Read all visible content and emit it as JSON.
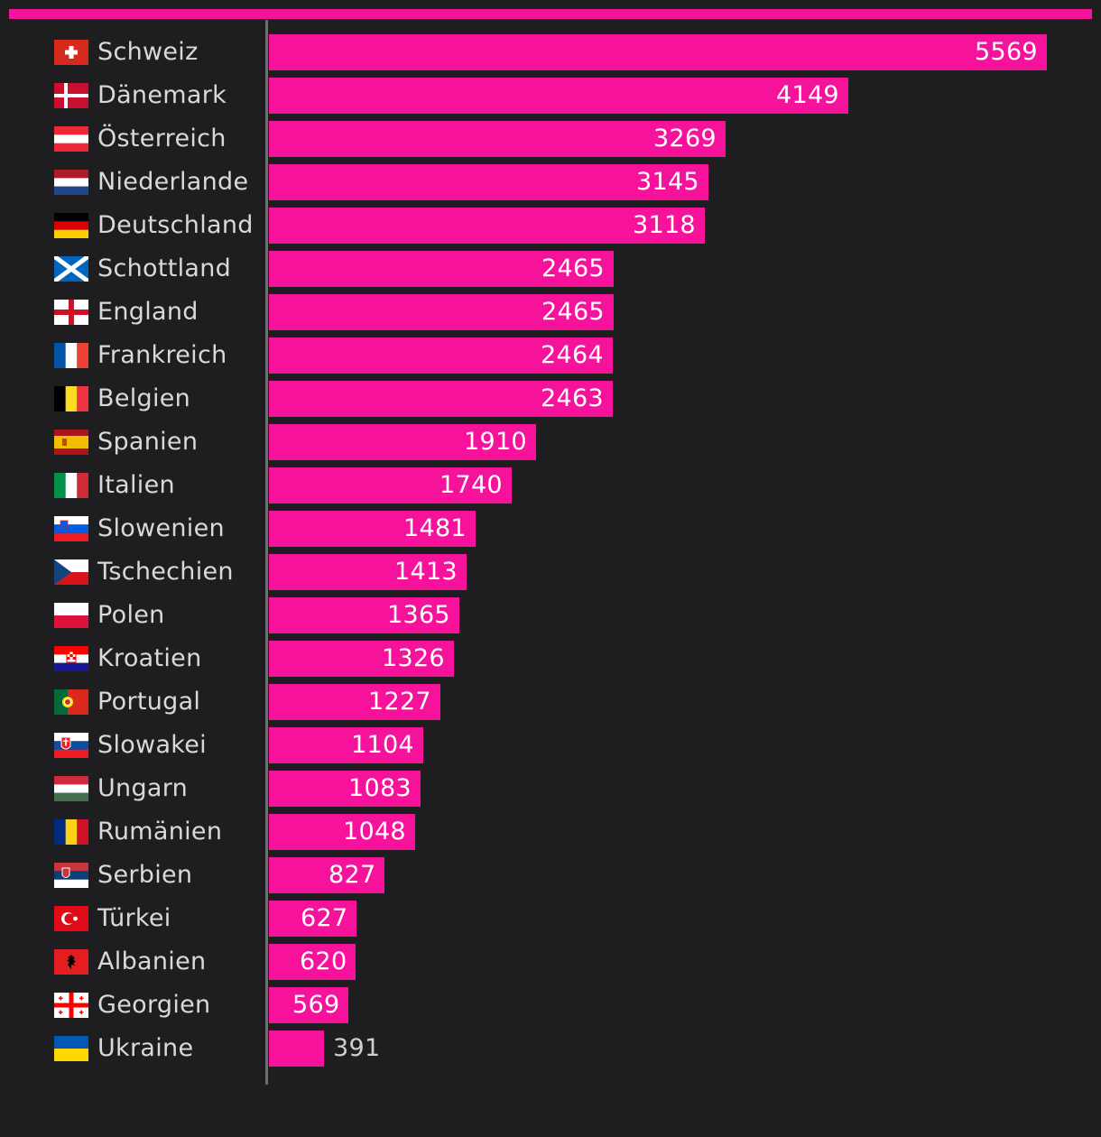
{
  "colors": {
    "accent": "#f7129c",
    "background": "#1e1e20",
    "axis": "#6f6f72"
  },
  "chart_data": {
    "type": "bar",
    "orientation": "horizontal",
    "title": "",
    "xlabel": "",
    "ylabel": "",
    "xlim": [
      0,
      5569
    ],
    "grid": false,
    "value_labels": true,
    "categories": [
      "Schweiz",
      "Dänemark",
      "Österreich",
      "Niederlande",
      "Deutschland",
      "Schottland",
      "England",
      "Frankreich",
      "Belgien",
      "Spanien",
      "Italien",
      "Slowenien",
      "Tschechien",
      "Polen",
      "Kroatien",
      "Portugal",
      "Slowakei",
      "Ungarn",
      "Rumänien",
      "Serbien",
      "Türkei",
      "Albanien",
      "Georgien",
      "Ukraine"
    ],
    "flags": [
      "flag-switzerland-icon",
      "flag-denmark-icon",
      "flag-austria-icon",
      "flag-netherlands-icon",
      "flag-germany-icon",
      "flag-scotland-icon",
      "flag-england-icon",
      "flag-france-icon",
      "flag-belgium-icon",
      "flag-spain-icon",
      "flag-italy-icon",
      "flag-slovenia-icon",
      "flag-czechia-icon",
      "flag-poland-icon",
      "flag-croatia-icon",
      "flag-portugal-icon",
      "flag-slovakia-icon",
      "flag-hungary-icon",
      "flag-romania-icon",
      "flag-serbia-icon",
      "flag-turkey-icon",
      "flag-albania-icon",
      "flag-georgia-icon",
      "flag-ukraine-icon"
    ],
    "values": [
      5569,
      4149,
      3269,
      3145,
      3118,
      2465,
      2465,
      2464,
      2463,
      1910,
      1740,
      1481,
      1413,
      1365,
      1326,
      1227,
      1104,
      1083,
      1048,
      827,
      627,
      620,
      569,
      391
    ]
  }
}
